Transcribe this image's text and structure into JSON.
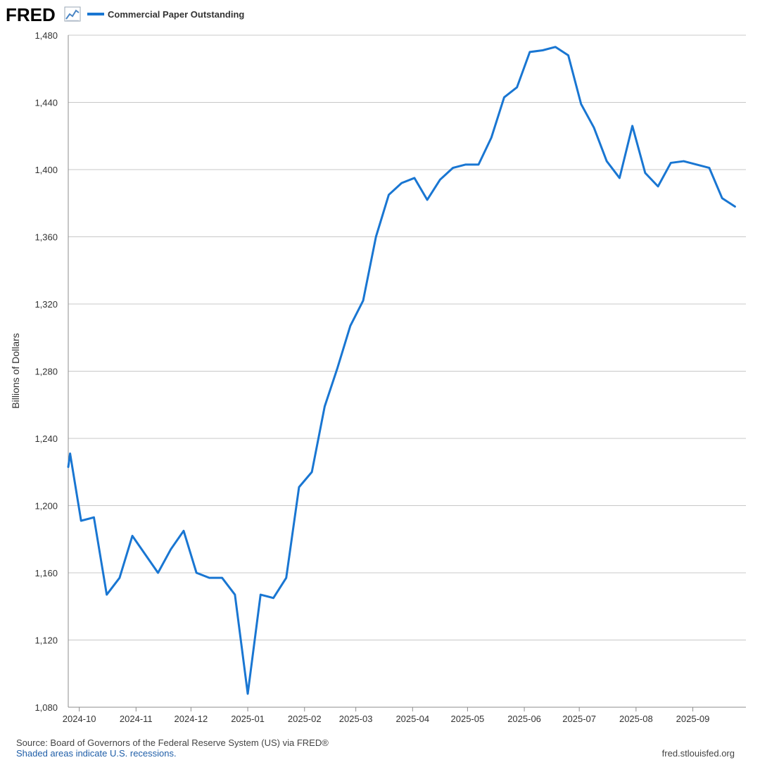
{
  "header": {
    "logo_text": "FRED",
    "logo_icon": "line-chart-icon",
    "legend_label": "Commercial Paper Outstanding"
  },
  "footer": {
    "source": "Source: Board of Governors of the Federal Reserve System (US) via FRED®",
    "recessions_note": "Shaded areas indicate U.S. recessions.",
    "site": "fred.stlouisfed.org"
  },
  "colors": {
    "series": "#1976d2",
    "grid": "#c8c8c8",
    "axis": "#8c8c8c",
    "recession_note": "#1f5ea8"
  },
  "chart_data": {
    "type": "line",
    "title": "",
    "xlabel": "",
    "ylabel": "Billions of Dollars",
    "ylim": [
      1080,
      1480
    ],
    "xlim": [
      "2024-09-25",
      "2025-09-30"
    ],
    "y_ticks": [
      1080,
      1120,
      1160,
      1200,
      1240,
      1280,
      1320,
      1360,
      1400,
      1440,
      1480
    ],
    "y_tick_labels": [
      "1,080",
      "1,120",
      "1,160",
      "1,200",
      "1,240",
      "1,280",
      "1,320",
      "1,360",
      "1,400",
      "1,440",
      "1,480"
    ],
    "x_ticks": [
      "2024-10-01",
      "2024-11-01",
      "2024-12-01",
      "2025-01-01",
      "2025-02-01",
      "2025-03-01",
      "2025-04-01",
      "2025-05-01",
      "2025-06-01",
      "2025-07-01",
      "2025-08-01",
      "2025-09-01"
    ],
    "x_tick_labels": [
      "2024-10",
      "2024-11",
      "2024-12",
      "2025-01",
      "2025-02",
      "2025-03",
      "2025-04",
      "2025-05",
      "2025-06",
      "2025-07",
      "2025-08",
      "2025-09"
    ],
    "grid": true,
    "legend_position": "top-left",
    "series": [
      {
        "name": "Commercial Paper Outstanding",
        "color": "#1976d2",
        "points": [
          {
            "x": "2024-09-25",
            "y": 1223
          },
          {
            "x": "2024-09-26",
            "y": 1231
          },
          {
            "x": "2024-10-02",
            "y": 1191
          },
          {
            "x": "2024-10-09",
            "y": 1193
          },
          {
            "x": "2024-10-16",
            "y": 1147
          },
          {
            "x": "2024-10-23",
            "y": 1157
          },
          {
            "x": "2024-10-30",
            "y": 1182
          },
          {
            "x": "2024-11-06",
            "y": 1171
          },
          {
            "x": "2024-11-13",
            "y": 1160
          },
          {
            "x": "2024-11-20",
            "y": 1174
          },
          {
            "x": "2024-11-27",
            "y": 1185
          },
          {
            "x": "2024-12-04",
            "y": 1160
          },
          {
            "x": "2024-12-11",
            "y": 1157
          },
          {
            "x": "2024-12-18",
            "y": 1157
          },
          {
            "x": "2024-12-25",
            "y": 1147
          },
          {
            "x": "2025-01-01",
            "y": 1088
          },
          {
            "x": "2025-01-08",
            "y": 1147
          },
          {
            "x": "2025-01-15",
            "y": 1145
          },
          {
            "x": "2025-01-22",
            "y": 1157
          },
          {
            "x": "2025-01-29",
            "y": 1211
          },
          {
            "x": "2025-02-05",
            "y": 1220
          },
          {
            "x": "2025-02-12",
            "y": 1259
          },
          {
            "x": "2025-02-19",
            "y": 1282
          },
          {
            "x": "2025-02-26",
            "y": 1307
          },
          {
            "x": "2025-03-05",
            "y": 1322
          },
          {
            "x": "2025-03-12",
            "y": 1360
          },
          {
            "x": "2025-03-19",
            "y": 1385
          },
          {
            "x": "2025-03-26",
            "y": 1392
          },
          {
            "x": "2025-04-02",
            "y": 1395
          },
          {
            "x": "2025-04-09",
            "y": 1382
          },
          {
            "x": "2025-04-16",
            "y": 1394
          },
          {
            "x": "2025-04-23",
            "y": 1401
          },
          {
            "x": "2025-04-30",
            "y": 1403
          },
          {
            "x": "2025-05-07",
            "y": 1403
          },
          {
            "x": "2025-05-14",
            "y": 1419
          },
          {
            "x": "2025-05-21",
            "y": 1443
          },
          {
            "x": "2025-05-28",
            "y": 1449
          },
          {
            "x": "2025-06-04",
            "y": 1470
          },
          {
            "x": "2025-06-11",
            "y": 1471
          },
          {
            "x": "2025-06-18",
            "y": 1473
          },
          {
            "x": "2025-06-25",
            "y": 1468
          },
          {
            "x": "2025-07-02",
            "y": 1439
          },
          {
            "x": "2025-07-09",
            "y": 1425
          },
          {
            "x": "2025-07-16",
            "y": 1405
          },
          {
            "x": "2025-07-23",
            "y": 1395
          },
          {
            "x": "2025-07-30",
            "y": 1426
          },
          {
            "x": "2025-08-06",
            "y": 1398
          },
          {
            "x": "2025-08-13",
            "y": 1390
          },
          {
            "x": "2025-08-20",
            "y": 1404
          },
          {
            "x": "2025-08-27",
            "y": 1405
          },
          {
            "x": "2025-09-03",
            "y": 1403
          },
          {
            "x": "2025-09-10",
            "y": 1401
          },
          {
            "x": "2025-09-17",
            "y": 1383
          },
          {
            "x": "2025-09-24",
            "y": 1378
          }
        ]
      }
    ]
  }
}
